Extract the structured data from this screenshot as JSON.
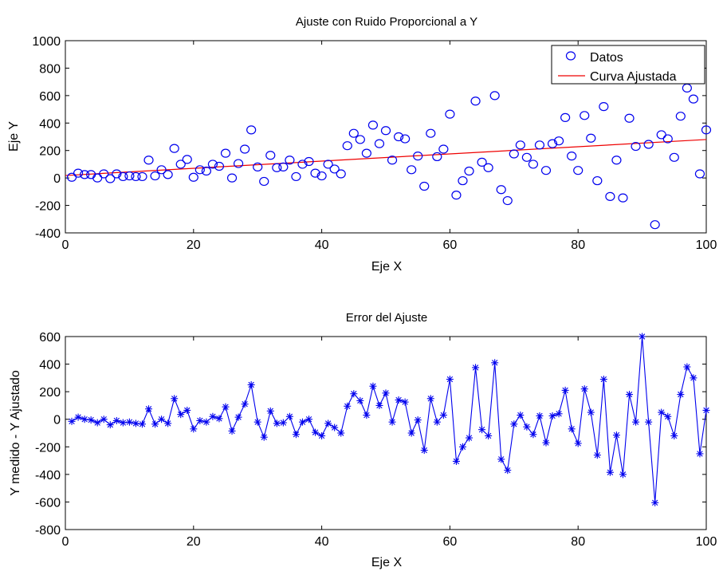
{
  "colors": {
    "data": "#0000ee",
    "fit": "#ee0000",
    "axis": "#000000"
  },
  "chart_data": [
    {
      "type": "scatter",
      "title": "Ajuste con Ruido Proporcional a Y",
      "xlabel": "Eje X",
      "ylabel": "Eje Y",
      "xlim": [
        0,
        100
      ],
      "ylim": [
        -400,
        1000
      ],
      "xticks": [
        0,
        20,
        40,
        60,
        80,
        100
      ],
      "yticks": [
        -400,
        -200,
        0,
        200,
        400,
        600,
        800,
        1000
      ],
      "legend": {
        "position": "top-right",
        "entries": [
          "Datos",
          "Curva Ajustada"
        ]
      },
      "series": [
        {
          "name": "Datos",
          "marker": "circle",
          "x": [
            1,
            2,
            3,
            4,
            5,
            6,
            7,
            8,
            9,
            10,
            11,
            12,
            13,
            14,
            15,
            16,
            17,
            18,
            19,
            20,
            21,
            22,
            23,
            24,
            25,
            26,
            27,
            28,
            29,
            30,
            31,
            32,
            33,
            34,
            35,
            36,
            37,
            38,
            39,
            40,
            41,
            42,
            43,
            44,
            45,
            46,
            47,
            48,
            49,
            50,
            51,
            52,
            53,
            54,
            55,
            56,
            57,
            58,
            59,
            60,
            61,
            62,
            63,
            64,
            65,
            66,
            67,
            68,
            69,
            70,
            71,
            72,
            73,
            74,
            75,
            76,
            77,
            78,
            79,
            80,
            81,
            82,
            83,
            84,
            85,
            86,
            87,
            88,
            89,
            90,
            91,
            92,
            93,
            94,
            95,
            96,
            97,
            98,
            99,
            100
          ],
          "y": [
            5,
            35,
            25,
            25,
            0,
            30,
            -5,
            30,
            10,
            15,
            10,
            10,
            130,
            15,
            60,
            25,
            215,
            100,
            135,
            5,
            60,
            50,
            100,
            85,
            180,
            0,
            105,
            210,
            350,
            80,
            -25,
            165,
            75,
            80,
            130,
            10,
            100,
            120,
            35,
            15,
            100,
            65,
            30,
            235,
            325,
            280,
            180,
            385,
            250,
            345,
            130,
            300,
            285,
            60,
            160,
            -60,
            325,
            155,
            210,
            465,
            -125,
            -20,
            50,
            560,
            115,
            75,
            600,
            -85,
            -165,
            175,
            240,
            150,
            100,
            240,
            55,
            250,
            270,
            440,
            160,
            55,
            455,
            290,
            -20,
            520,
            -135,
            130,
            -145,
            435,
            230,
            850,
            245,
            -340,
            315,
            285,
            150,
            450,
            655,
            575,
            30,
            350
          ]
        },
        {
          "name": "Curva Ajustada",
          "type": "line",
          "x": [
            0,
            100
          ],
          "y": [
            18,
            280
          ]
        }
      ]
    },
    {
      "type": "line",
      "title": "Error del Ajuste",
      "xlabel": "Eje X",
      "ylabel": "Y medido - Y Ajustado",
      "xlim": [
        0,
        100
      ],
      "ylim": [
        -800,
        600
      ],
      "xticks": [
        0,
        20,
        40,
        60,
        80,
        100
      ],
      "yticks": [
        -800,
        -600,
        -400,
        -200,
        0,
        200,
        400,
        600
      ],
      "series": [
        {
          "marker": "asterisk",
          "x": [
            1,
            2,
            3,
            4,
            5,
            6,
            7,
            8,
            9,
            10,
            11,
            12,
            13,
            14,
            15,
            16,
            17,
            18,
            19,
            20,
            21,
            22,
            23,
            24,
            25,
            26,
            27,
            28,
            29,
            30,
            31,
            32,
            33,
            34,
            35,
            36,
            37,
            38,
            39,
            40,
            41,
            42,
            43,
            44,
            45,
            46,
            47,
            48,
            49,
            50,
            51,
            52,
            53,
            54,
            55,
            56,
            57,
            58,
            59,
            60,
            61,
            62,
            63,
            64,
            65,
            66,
            67,
            68,
            69,
            70,
            71,
            72,
            73,
            74,
            75,
            76,
            77,
            78,
            79,
            80,
            81,
            82,
            83,
            84,
            85,
            86,
            87,
            88,
            89,
            90,
            91,
            92,
            93,
            94,
            95,
            96,
            97,
            98,
            99,
            100
          ],
          "y": [
            -15,
            15,
            0,
            -5,
            -25,
            0,
            -40,
            -10,
            -25,
            -20,
            -30,
            -35,
            75,
            -35,
            0,
            -30,
            150,
            35,
            65,
            -70,
            -10,
            -20,
            20,
            5,
            90,
            -85,
            15,
            110,
            250,
            -20,
            -130,
            60,
            -30,
            -25,
            20,
            -110,
            -20,
            0,
            -95,
            -120,
            -30,
            -60,
            -100,
            95,
            185,
            135,
            30,
            240,
            100,
            190,
            -20,
            140,
            125,
            -100,
            -5,
            -225,
            150,
            -20,
            30,
            290,
            -305,
            -200,
            -135,
            375,
            -75,
            -120,
            410,
            -290,
            -370,
            -35,
            30,
            -55,
            -110,
            25,
            -170,
            25,
            40,
            210,
            -70,
            -175,
            220,
            50,
            -260,
            290,
            -385,
            -115,
            -400,
            180,
            -20,
            600,
            -20,
            -605,
            50,
            20,
            -120,
            180,
            380,
            300,
            -250,
            65
          ]
        }
      ]
    }
  ]
}
